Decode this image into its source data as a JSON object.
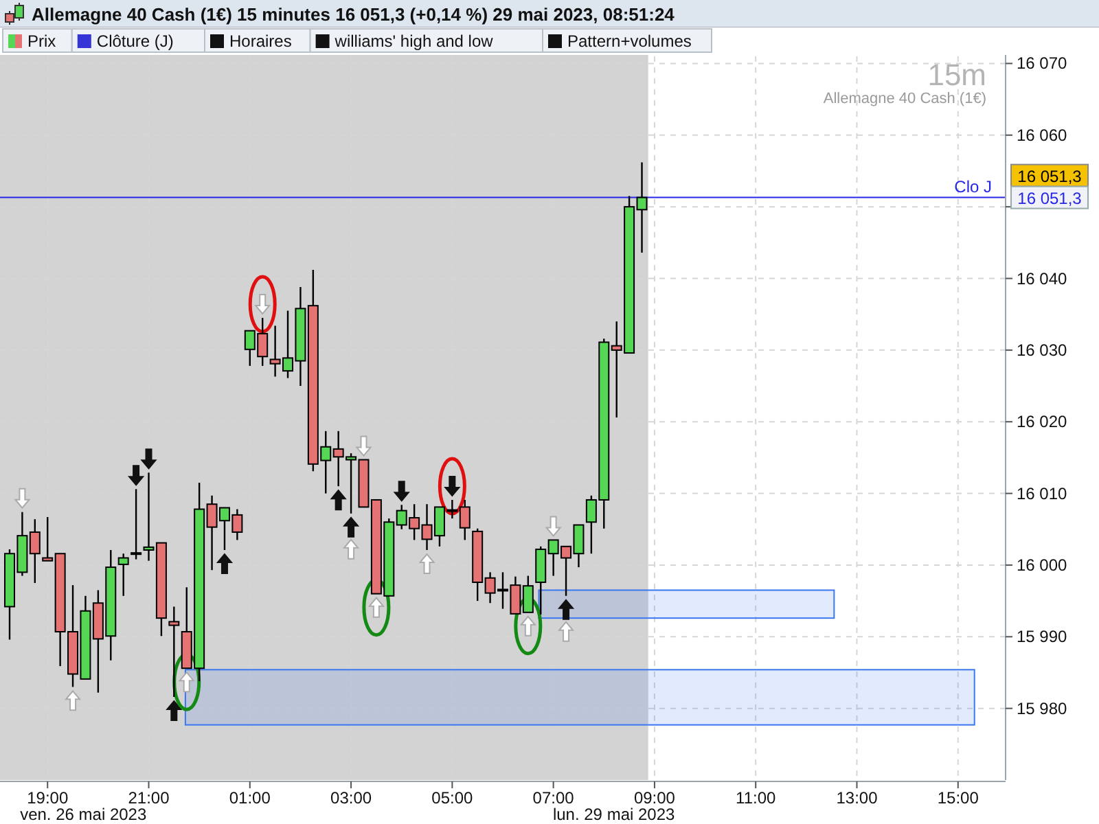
{
  "chart_data": {
    "type": "candlestick",
    "title": "Allemagne 40 Cash (1€) 15 minutes 16 051,3 (+0,14 %) 29 mai 2023, 08:51:24",
    "categories": [
      null,
      null,
      null,
      "19:00",
      null,
      null,
      null,
      null,
      null,
      null,
      null,
      "21:00",
      null,
      null,
      null,
      null,
      null,
      null,
      null,
      "01:00",
      null,
      null,
      null,
      null,
      null,
      null,
      null,
      "03:00",
      null,
      null,
      null,
      null,
      null,
      null,
      null,
      "05:00",
      null,
      null,
      null,
      null,
      null,
      null,
      null,
      "07:00",
      null,
      null,
      null,
      null,
      null,
      null,
      null,
      "09:00",
      null,
      null,
      null,
      null,
      null,
      null,
      null,
      "11:00",
      null,
      null,
      null,
      null,
      null,
      null,
      null,
      "13:00",
      null,
      null,
      null,
      null,
      null,
      null,
      null,
      "15:00",
      null,
      null,
      null
    ],
    "ohlc": [
      [
        15994.2,
        16002.2,
        15989.6,
        16001.6
      ],
      [
        15999.0,
        16007.4,
        15998.5,
        16004.1
      ],
      [
        16004.6,
        16006.4,
        15997.5,
        16001.6
      ],
      [
        16001.0,
        16006.7,
        16000.6,
        16000.6
      ],
      [
        16001.6,
        16001.6,
        15985.9,
        15990.7
      ],
      [
        15990.7,
        15997.2,
        15983.0,
        15984.8
      ],
      [
        15984.1,
        15995.7,
        15984.1,
        15993.6
      ],
      [
        15994.7,
        15996.5,
        15982.2,
        15989.7
      ],
      [
        15990.1,
        16002.1,
        15986.7,
        15999.7
      ],
      [
        16000.1,
        16001.6,
        15995.7,
        16001.0
      ],
      [
        16001.7,
        16010.6,
        16000.8,
        16001.7
      ],
      [
        16002.1,
        16012.9,
        16000.6,
        16002.5
      ],
      [
        16003.1,
        16003.1,
        15990.1,
        15992.6
      ],
      [
        15992.1,
        15994.2,
        15981.6,
        15991.6
      ],
      [
        15990.7,
        15996.9,
        15985.6,
        15985.6
      ],
      [
        15985.6,
        16011.5,
        15983.8,
        16007.8
      ],
      [
        16008.5,
        16009.7,
        15999.3,
        16005.3
      ],
      [
        16006.2,
        16008.0,
        16002.1,
        16008.0
      ],
      [
        16007.0,
        16007.8,
        16003.5,
        16004.6
      ],
      [
        16030.1,
        16032.7,
        16027.8,
        16032.7
      ],
      [
        16032.3,
        16034.5,
        16027.8,
        16029.1
      ],
      [
        16028.7,
        16033.4,
        16026.3,
        16028.1
      ],
      [
        16027.1,
        16035.5,
        16026.1,
        16028.9
      ],
      [
        16028.5,
        16038.8,
        16025.0,
        16035.8
      ],
      [
        16036.2,
        16041.2,
        16013.1,
        16014.1
      ],
      [
        16014.6,
        16018.7,
        16010.0,
        16016.5
      ],
      [
        16016.2,
        16018.7,
        16011.0,
        16015.1
      ],
      [
        16014.7,
        16015.6,
        16007.2,
        16015.1
      ],
      [
        16014.7,
        16014.7,
        16008.1,
        16008.1
      ],
      [
        16009.1,
        16009.1,
        15996.0,
        15996.0
      ],
      [
        15995.7,
        16006.5,
        15995.7,
        16006.0
      ],
      [
        16005.6,
        16008.4,
        16005.0,
        16007.6
      ],
      [
        16006.6,
        16008.5,
        16003.5,
        16005.1
      ],
      [
        16005.6,
        16008.5,
        16002.1,
        16003.6
      ],
      [
        16004.1,
        16008.1,
        16002.6,
        16008.1
      ],
      [
        16007.7,
        16009.1,
        16006.5,
        16007.7
      ],
      [
        16008.1,
        16009.1,
        16003.5,
        16005.2
      ],
      [
        16004.7,
        16005.1,
        15995.0,
        15997.6
      ],
      [
        15998.2,
        15999.0,
        15994.7,
        15996.1
      ],
      [
        15996.6,
        15999.0,
        15993.9,
        15996.6
      ],
      [
        15997.2,
        15998.4,
        15993.2,
        15993.2
      ],
      [
        15993.4,
        15998.5,
        15993.4,
        15997.1
      ],
      [
        15997.6,
        16002.6,
        15993.1,
        16002.2
      ],
      [
        16001.6,
        16003.5,
        15998.5,
        16003.5
      ],
      [
        16002.6,
        16002.6,
        15995.7,
        16001.0
      ],
      [
        16001.6,
        16005.6,
        15999.7,
        16005.6
      ],
      [
        16006.0,
        16009.7,
        16001.6,
        16009.1
      ],
      [
        16009.1,
        16031.6,
        16005.1,
        16031.1
      ],
      [
        16030.6,
        16034.0,
        16020.6,
        16030.0
      ],
      [
        16029.6,
        16051.5,
        16029.6,
        16050.0
      ],
      [
        16049.6,
        16056.2,
        16043.6,
        16051.3
      ],
      null,
      null,
      null,
      null,
      null,
      null,
      null,
      null,
      null,
      null,
      null,
      null,
      null,
      null,
      null,
      null,
      null,
      null,
      null,
      null,
      null,
      null,
      null,
      null,
      null,
      null,
      null,
      null
    ],
    "colors": [
      "#55d655",
      "#55d655",
      "#e57373",
      "#e57373",
      "#e57373",
      "#e57373",
      "#55d655",
      "#e57373",
      "#55d655",
      "#55d655",
      "#e57373",
      "#55d655",
      "#e57373",
      "#e57373",
      "#e57373",
      "#55d655",
      "#e57373",
      "#55d655",
      "#e57373",
      "#55d655",
      "#e57373",
      "#e57373",
      "#55d655",
      "#55d655",
      "#e57373",
      "#55d655",
      "#e57373",
      "#55d655",
      "#e57373",
      "#e57373",
      "#55d655",
      "#55d655",
      "#e57373",
      "#e57373",
      "#55d655",
      "#e57373",
      "#e57373",
      "#e57373",
      "#e57373",
      "#e57373",
      "#e57373",
      "#55d655",
      "#55d655",
      "#55d655",
      "#e57373",
      "#55d655",
      "#55d655",
      "#55d655",
      "#e57373",
      "#55d655",
      "#55d655",
      null,
      null,
      null,
      null,
      null,
      null,
      null,
      null,
      null,
      null,
      null,
      null,
      null,
      null,
      null,
      null,
      null,
      null,
      null,
      null,
      null,
      null,
      null,
      null,
      null,
      null,
      null,
      null
    ],
    "ylim": [
      15970,
      16071
    ],
    "yticks": [
      {
        "value": 15980,
        "label": "15 980"
      },
      {
        "value": 15990,
        "label": "15 990"
      },
      {
        "value": 16000,
        "label": "16 000"
      },
      {
        "value": 16010,
        "label": "16 010"
      },
      {
        "value": 16020,
        "label": "16 020"
      },
      {
        "value": 16030,
        "label": "16 030"
      },
      {
        "value": 16040,
        "label": "16 040"
      },
      {
        "value": 16050,
        "label": null
      },
      {
        "value": 16060,
        "label": "16 060"
      },
      {
        "value": 16070,
        "label": "16 070"
      }
    ],
    "grid": true,
    "ref_lines": [
      {
        "axis": "y",
        "value": 16051.3,
        "label": "Clo J",
        "color": "#2626e6"
      }
    ],
    "bands": [
      {
        "axis": "y",
        "from": 15977.7,
        "to": 15985.4,
        "color": "#3b78f0"
      },
      {
        "axis": "y",
        "from": 15992.6,
        "to": 15996.5,
        "color": "#3b78f0"
      }
    ],
    "annotations": [
      "Prix",
      "Clôture (J)",
      "Horaires",
      "williams' high and low",
      "Pattern+volumes",
      "15m",
      "Allemagne 40 Cash (1€)",
      "ven. 26 mai 2023",
      "lun. 29 mai 2023",
      "16 051,3",
      "16 051,3"
    ]
  }
}
